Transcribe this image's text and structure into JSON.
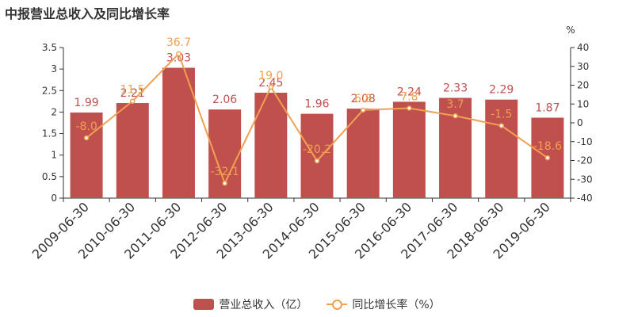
{
  "title": "中报营业总收入及同比增长率",
  "chart_data": {
    "type": "bar",
    "categories": [
      "2009-06-30",
      "2010-06-30",
      "2011-06-30",
      "2012-06-30",
      "2013-06-30",
      "2014-06-30",
      "2015-06-30",
      "2016-06-30",
      "2017-06-30",
      "2018-06-30",
      "2019-06-30"
    ],
    "series": [
      {
        "name": "营业总收入（亿）",
        "type": "bar",
        "axis": "left",
        "color": "#c0504d",
        "label_color": "#c0504d",
        "values": [
          1.99,
          2.21,
          3.03,
          2.06,
          2.45,
          1.96,
          2.08,
          2.24,
          2.33,
          2.29,
          1.87
        ]
      },
      {
        "name": "同比增长率（%）",
        "type": "line",
        "axis": "right",
        "color": "#f0a050",
        "label_color": "#f0a050",
        "values": [
          -8.0,
          11.5,
          36.7,
          -32.1,
          19.0,
          -20.2,
          6.8,
          7.8,
          3.7,
          -1.5,
          -18.6
        ]
      }
    ],
    "y_left": {
      "min": 0,
      "max": 3.5,
      "ticks": [
        "0",
        "0.5",
        "1",
        "1.5",
        "2",
        "2.5",
        "3",
        "3.5"
      ]
    },
    "y_right": {
      "unit": "%",
      "min": -40,
      "max": 40,
      "ticks": [
        "-40",
        "-30",
        "-20",
        "-10",
        "0",
        "10",
        "20",
        "30",
        "40"
      ]
    },
    "legend_position": "bottom-center",
    "grid": false
  }
}
